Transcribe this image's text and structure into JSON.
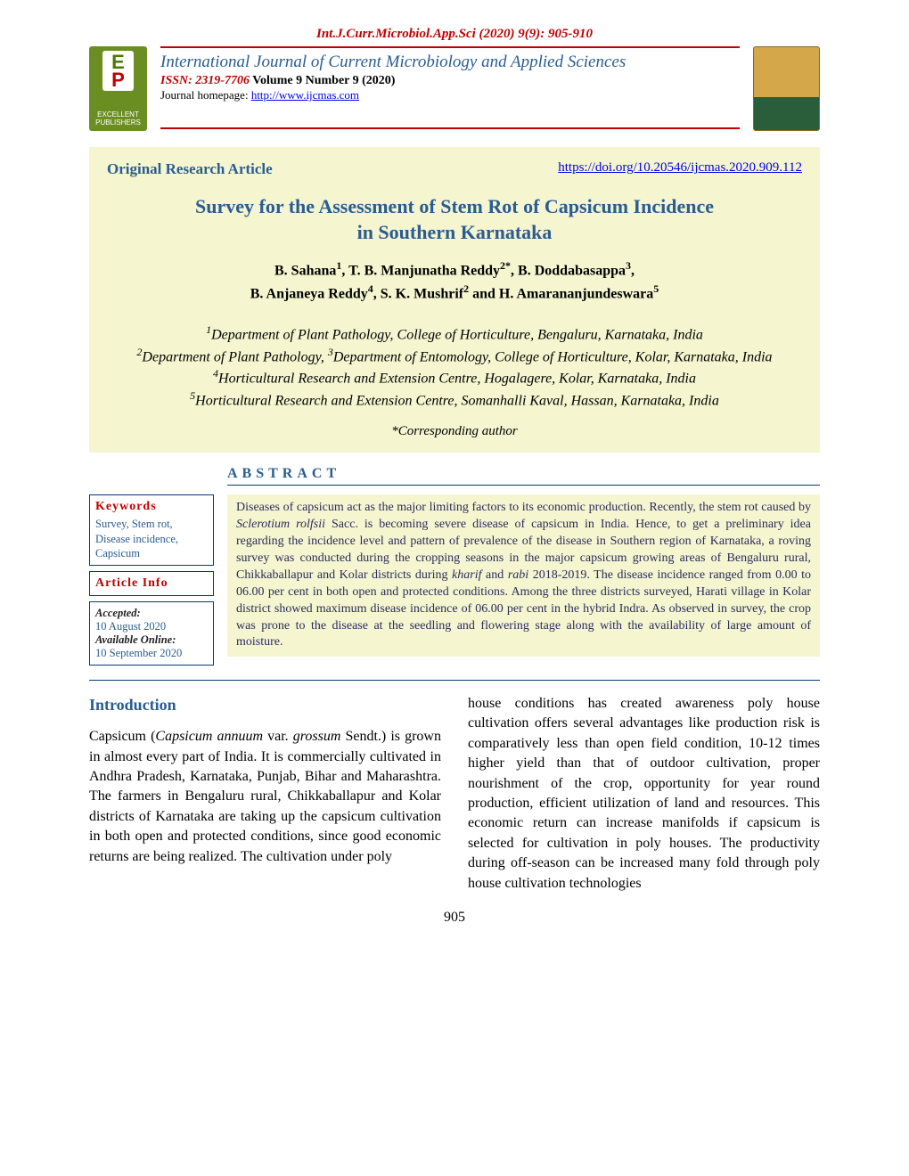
{
  "header": {
    "citation": "Int.J.Curr.Microbiol.App.Sci (2020) 9(9): 905-910",
    "journal_name": "International Journal of Current Microbiology and Applied Sciences",
    "issn_label": "ISSN: 2319-7706",
    "volume": " Volume 9 Number 9 (2020)",
    "homepage_label": "Journal homepage: ",
    "homepage_url": "http://www.ijcmas.com",
    "publisher_logo_line1": "EXCELLENT",
    "publisher_logo_line2": "PUBLISHERS"
  },
  "article": {
    "type": "Original Research Article",
    "doi_url": "https://doi.org/10.20546/ijcmas.2020.909.112",
    "title_line1": "Survey for the Assessment of Stem Rot of Capsicum Incidence",
    "title_line2": "in Southern Karnataka",
    "authors_html": "B. Sahana<sup>1</sup>, T. B. Manjunatha Reddy<sup>2*</sup>, B. Doddabasappa<sup>3</sup>,<br>B. Anjaneya Reddy<sup>4</sup>, S. K. Mushrif<sup>2</sup> and H. Amarananjundeswara<sup>5</sup>",
    "affiliations_html": "<sup>1</sup>Department of Plant Pathology, College of Horticulture, Bengaluru, Karnataka, India<br><sup>2</sup>Department of Plant Pathology, <sup>3</sup>Department of Entomology, College of Horticulture, Kolar, Karnataka, India<br><sup>4</sup>Horticultural Research and Extension Centre, Hogalagere, Kolar, Karnataka, India<br><sup>5</sup>Horticultural Research and Extension Centre, Somanhalli Kaval, Hassan, Karnataka, India",
    "corresponding": "*Corresponding author"
  },
  "abstract": {
    "heading": "ABSTRACT",
    "keywords_heading": "Keywords",
    "keywords": "Survey, Stem rot, Disease incidence, Capsicum",
    "article_info_heading": "Article Info",
    "accepted_label": "Accepted:",
    "accepted_value": "10 August 2020",
    "available_label": "Available Online:",
    "available_value": "10 September 2020",
    "text_html": "Diseases of capsicum act as the major limiting factors to its economic production. Recently, the stem rot caused by <i>Sclerotium rolfsii</i> Sacc. is becoming severe disease of capsicum in India. Hence, to get a preliminary idea regarding the incidence level and pattern of prevalence of the disease in Southern region of Karnataka, a roving survey was conducted during the cropping seasons in the major capsicum growing areas of Bengaluru rural, Chikkaballapur and Kolar districts during <i>kharif</i> and <i>rabi</i> 2018-2019. The disease incidence ranged from 0.00 to 06.00 per cent in both open and protected conditions. Among the three districts surveyed, Harati village in Kolar district showed maximum disease incidence of 06.00 per cent in the hybrid Indra. As observed in survey, the crop was prone to the disease at the seedling and flowering stage along with the availability of large amount of moisture."
  },
  "body": {
    "intro_heading": "Introduction",
    "col1_html": "Capsicum (<i>Capsicum annuum</i> var. <i>grossum</i> Sendt.) is grown in almost every part of India. It is commercially cultivated in Andhra Pradesh, Karnataka, Punjab, Bihar and Maharashtra. The farmers in Bengaluru rural, Chikkaballapur and Kolar districts of Karnataka are taking up the capsicum cultivation in both open and protected conditions, since good economic returns are being realized. The cultivation under poly",
    "col2_text": "house conditions has created awareness poly house cultivation offers several advantages like production risk is comparatively less than open field condition, 10-12 times higher yield than that of outdoor cultivation, proper nourishment of the crop, opportunity for year round production, efficient utilization of land and resources. This economic return can increase manifolds if capsicum is selected for cultivation in poly houses. The productivity during off-season can be increased many fold through poly house cultivation technologies"
  },
  "page_number": "905"
}
